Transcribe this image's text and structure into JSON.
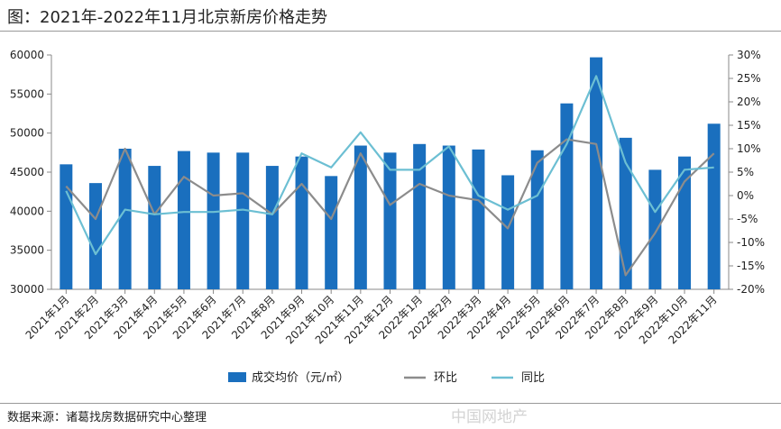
{
  "title": "图：2021年-2022年11月北京新房价格走势",
  "source": "数据来源：诸葛找房数据研究中心整理",
  "watermark": "中国网地产",
  "colors": {
    "bar": "#1a6fbe",
    "huanbi": "#8c8c8c",
    "tongbi": "#6cbfd3",
    "axis": "#888888",
    "text": "#222222"
  },
  "chart_data": {
    "type": "bar",
    "categories": [
      "2021年1月",
      "2021年2月",
      "2021年3月",
      "2021年4月",
      "2021年5月",
      "2021年6月",
      "2021年7月",
      "2021年8月",
      "2021年9月",
      "2021年10月",
      "2021年11月",
      "2021年12月",
      "2022年1月",
      "2022年2月",
      "2022年3月",
      "2022年4月",
      "2022年5月",
      "2022年6月",
      "2022年7月",
      "2022年8月",
      "2022年9月",
      "2022年10月",
      "2022年11月"
    ],
    "series": [
      {
        "name": "成交均价（元/㎡）",
        "type": "bar",
        "axis": "left",
        "values": [
          46000,
          43600,
          48000,
          45800,
          47700,
          47500,
          47500,
          45800,
          47000,
          44500,
          48400,
          47500,
          48600,
          48400,
          47900,
          44600,
          47800,
          53800,
          59700,
          49400,
          45300,
          47000,
          51200
        ]
      },
      {
        "name": "环比",
        "type": "line",
        "axis": "right",
        "unit": "%",
        "values": [
          2,
          -5,
          10,
          -4,
          4,
          0,
          0.5,
          -4,
          2.5,
          -5,
          9,
          -2,
          2.5,
          0,
          -1,
          -7,
          7,
          12,
          11,
          -17,
          -8,
          3,
          9
        ]
      },
      {
        "name": "同比",
        "type": "line",
        "axis": "right",
        "unit": "%",
        "values": [
          1,
          -12.5,
          -3,
          -4,
          -3.5,
          -3.5,
          -3,
          -4,
          9,
          6,
          13.5,
          5.5,
          5.5,
          10.5,
          0,
          -3,
          0,
          11,
          25.5,
          7,
          -3.5,
          5.5,
          6
        ]
      }
    ],
    "ylim_left": [
      30000,
      60000
    ],
    "yticks_left": [
      "30000",
      "35000",
      "40000",
      "45000",
      "50000",
      "55000",
      "60000"
    ],
    "ylim_right": [
      -20,
      30
    ],
    "yticks_right": [
      "-20%",
      "-15%",
      "-10%",
      "-5%",
      "0%",
      "5%",
      "10%",
      "15%",
      "20%",
      "25%",
      "30%"
    ],
    "legend_position": "bottom",
    "grid": false
  }
}
